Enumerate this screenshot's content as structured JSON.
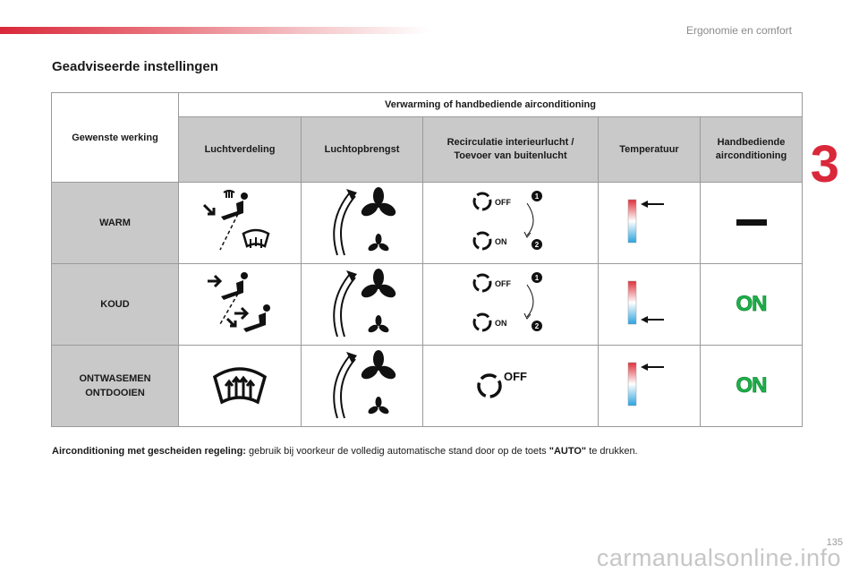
{
  "header": {
    "section_title": "Ergonomie en comfort",
    "chapter_number": "3"
  },
  "title": "Geadviseerde instellingen",
  "table": {
    "row_header": "Gewenste werking",
    "group_header": "Verwarming of handbediende airconditioning",
    "columns": [
      "Luchtverdeling",
      "Luchtopbrengst",
      "Recirculatie interieurlucht / Toevoer van buitenlucht",
      "Temperatuur",
      "Handbediende airconditioning"
    ],
    "rows": [
      {
        "label": "WARM",
        "recirc": [
          "OFF",
          "ON"
        ],
        "steps": [
          "1",
          "2"
        ],
        "ac_state": "—",
        "temp_level": "hot"
      },
      {
        "label": "KOUD",
        "recirc": [
          "OFF",
          "ON"
        ],
        "steps": [
          "1",
          "2"
        ],
        "ac_state": "ON",
        "temp_level": "cold"
      },
      {
        "label_line1": "ONTWASEMEN",
        "label_line2": "ONTDOOIEN",
        "recirc": [
          "OFF"
        ],
        "ac_state": "ON",
        "temp_level": "hot"
      }
    ]
  },
  "footer": {
    "bold_lead": "Airconditioning met gescheiden regeling:",
    "text": " gebruik bij voorkeur de volledig automatische stand door op de toets ",
    "key": "\"AUTO\"",
    "tail": " te drukken."
  },
  "page_number": "135",
  "watermark": "carmanualsonline.info",
  "colors": {
    "accent": "#d9283a",
    "on_green": "#1fb24a",
    "cell_gray": "#c9c9c9"
  }
}
